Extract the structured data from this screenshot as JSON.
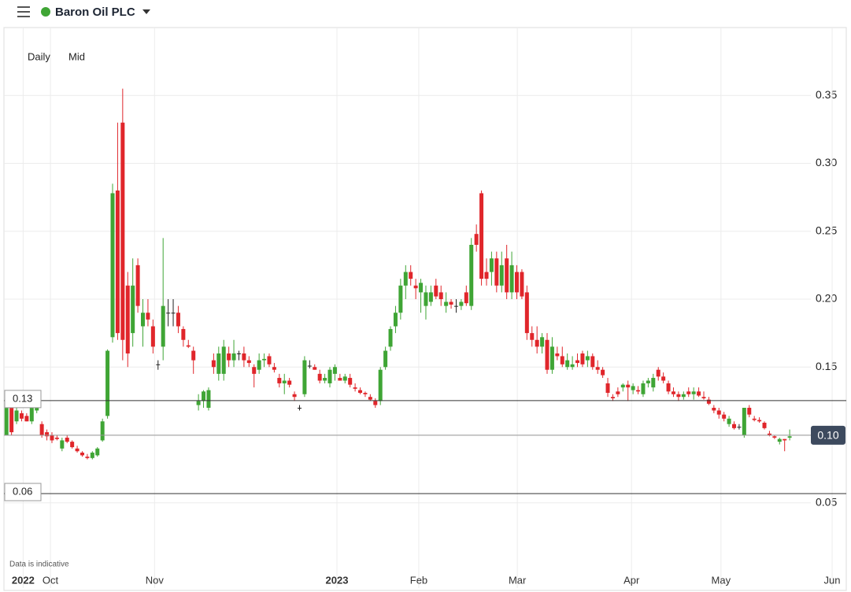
{
  "header": {
    "title": "Baron Oil PLC"
  },
  "controls": {
    "interval": "Daily",
    "price": "Mid"
  },
  "chart_data": {
    "type": "candlestick",
    "open": [
      0.1,
      0.12,
      0.11,
      0.116,
      0.114,
      0.11,
      0.118,
      0.108,
      0.102,
      0.1,
      0.098,
      0.09,
      0.098,
      0.095,
      0.09,
      0.087,
      0.084,
      0.083,
      0.085,
      0.096,
      0.114,
      0.172,
      0.28,
      0.33,
      0.21,
      0.175,
      0.225,
      0.18,
      0.19,
      0.18,
      0.152,
      0.165,
      0.19,
      0.19,
      0.19,
      0.178,
      0.166,
      0.162,
      0.122,
      0.125,
      0.12,
      0.155,
      0.145,
      0.145,
      0.16,
      0.155,
      0.16,
      0.16,
      0.155,
      0.15,
      0.148,
      0.155,
      0.158,
      0.15,
      0.142,
      0.138,
      0.14,
      0.13,
      0.12,
      0.13,
      0.151,
      0.15,
      0.145,
      0.14,
      0.138,
      0.145,
      0.142,
      0.14,
      0.142,
      0.135,
      0.133,
      0.131,
      0.128,
      0.125,
      0.125,
      0.15,
      0.165,
      0.18,
      0.19,
      0.21,
      0.22,
      0.21,
      0.205,
      0.195,
      0.198,
      0.21,
      0.205,
      0.195,
      0.198,
      0.195,
      0.195,
      0.205,
      0.195,
      0.248,
      0.278,
      0.22,
      0.22,
      0.23,
      0.21,
      0.23,
      0.205,
      0.22,
      0.22,
      0.205,
      0.175,
      0.17,
      0.165,
      0.17,
      0.148,
      0.16,
      0.158,
      0.15,
      0.15,
      0.155,
      0.16,
      0.155,
      0.158,
      0.15,
      0.148,
      0.138,
      0.128,
      0.132,
      0.135,
      0.137,
      0.133,
      0.133,
      0.13,
      0.138,
      0.135,
      0.148,
      0.143,
      0.138,
      0.132,
      0.13,
      0.128,
      0.132,
      0.13,
      0.132,
      0.128,
      0.126,
      0.12,
      0.118,
      0.115,
      0.108,
      0.108,
      0.106,
      0.1,
      0.12,
      0.112,
      0.111,
      0.109,
      0.101,
      0.099,
      0.095,
      0.097,
      0.098
    ],
    "high": [
      0.12,
      0.12,
      0.122,
      0.118,
      0.116,
      0.122,
      0.126,
      0.11,
      0.104,
      0.102,
      0.1,
      0.098,
      0.1,
      0.096,
      0.092,
      0.088,
      0.086,
      0.088,
      0.091,
      0.112,
      0.163,
      0.285,
      0.33,
      0.355,
      0.22,
      0.23,
      0.23,
      0.2,
      0.2,
      0.185,
      0.155,
      0.245,
      0.2,
      0.2,
      0.195,
      0.18,
      0.17,
      0.165,
      0.13,
      0.133,
      0.135,
      0.16,
      0.165,
      0.17,
      0.165,
      0.17,
      0.162,
      0.165,
      0.158,
      0.152,
      0.16,
      0.16,
      0.16,
      0.153,
      0.145,
      0.145,
      0.142,
      0.132,
      0.122,
      0.158,
      0.155,
      0.152,
      0.148,
      0.145,
      0.15,
      0.152,
      0.145,
      0.145,
      0.145,
      0.138,
      0.135,
      0.132,
      0.13,
      0.127,
      0.15,
      0.165,
      0.18,
      0.195,
      0.215,
      0.225,
      0.225,
      0.215,
      0.215,
      0.21,
      0.21,
      0.215,
      0.21,
      0.205,
      0.2,
      0.2,
      0.2,
      0.21,
      0.245,
      0.255,
      0.28,
      0.23,
      0.235,
      0.235,
      0.235,
      0.24,
      0.235,
      0.225,
      0.222,
      0.21,
      0.18,
      0.18,
      0.175,
      0.175,
      0.172,
      0.165,
      0.165,
      0.16,
      0.158,
      0.16,
      0.162,
      0.162,
      0.16,
      0.155,
      0.15,
      0.142,
      0.13,
      0.135,
      0.138,
      0.14,
      0.138,
      0.136,
      0.14,
      0.142,
      0.145,
      0.15,
      0.146,
      0.14,
      0.135,
      0.132,
      0.132,
      0.135,
      0.135,
      0.135,
      0.132,
      0.128,
      0.122,
      0.12,
      0.117,
      0.114,
      0.11,
      0.108,
      0.12,
      0.122,
      0.114,
      0.113,
      0.11,
      0.103,
      0.1,
      0.098,
      0.097,
      0.104
    ],
    "low": [
      0.1,
      0.1,
      0.108,
      0.11,
      0.11,
      0.108,
      0.116,
      0.098,
      0.096,
      0.094,
      0.096,
      0.088,
      0.094,
      0.09,
      0.087,
      0.084,
      0.082,
      0.082,
      0.084,
      0.095,
      0.112,
      0.168,
      0.17,
      0.155,
      0.15,
      0.165,
      0.19,
      0.165,
      0.18,
      0.16,
      0.148,
      0.155,
      0.18,
      0.18,
      0.175,
      0.165,
      0.164,
      0.145,
      0.118,
      0.12,
      0.118,
      0.145,
      0.14,
      0.14,
      0.15,
      0.15,
      0.155,
      0.15,
      0.15,
      0.135,
      0.145,
      0.15,
      0.15,
      0.146,
      0.135,
      0.13,
      0.135,
      0.125,
      0.118,
      0.128,
      0.149,
      0.148,
      0.138,
      0.138,
      0.135,
      0.14,
      0.14,
      0.138,
      0.135,
      0.132,
      0.13,
      0.128,
      0.125,
      0.12,
      0.122,
      0.148,
      0.162,
      0.175,
      0.185,
      0.2,
      0.21,
      0.2,
      0.19,
      0.185,
      0.195,
      0.2,
      0.195,
      0.19,
      0.193,
      0.19,
      0.192,
      0.195,
      0.192,
      0.235,
      0.21,
      0.21,
      0.21,
      0.205,
      0.205,
      0.2,
      0.2,
      0.2,
      0.2,
      0.17,
      0.165,
      0.16,
      0.16,
      0.145,
      0.145,
      0.155,
      0.15,
      0.148,
      0.148,
      0.15,
      0.15,
      0.15,
      0.148,
      0.145,
      0.142,
      0.128,
      0.125,
      0.128,
      0.132,
      0.125,
      0.13,
      0.13,
      0.128,
      0.135,
      0.132,
      0.14,
      0.138,
      0.13,
      0.128,
      0.125,
      0.126,
      0.128,
      0.126,
      0.128,
      0.126,
      0.122,
      0.116,
      0.112,
      0.11,
      0.106,
      0.104,
      0.104,
      0.098,
      0.113,
      0.11,
      0.109,
      0.104,
      0.099,
      0.097,
      0.093,
      0.088,
      0.096
    ],
    "close": [
      0.12,
      0.102,
      0.118,
      0.112,
      0.11,
      0.12,
      0.124,
      0.1,
      0.099,
      0.096,
      0.097,
      0.096,
      0.095,
      0.091,
      0.088,
      0.085,
      0.083,
      0.087,
      0.09,
      0.11,
      0.162,
      0.278,
      0.175,
      0.17,
      0.16,
      0.21,
      0.195,
      0.19,
      0.185,
      0.165,
      0.152,
      0.195,
      0.19,
      0.19,
      0.18,
      0.17,
      0.165,
      0.155,
      0.125,
      0.132,
      0.133,
      0.15,
      0.16,
      0.165,
      0.155,
      0.16,
      0.16,
      0.155,
      0.153,
      0.145,
      0.155,
      0.156,
      0.152,
      0.148,
      0.138,
      0.14,
      0.137,
      0.128,
      0.12,
      0.155,
      0.151,
      0.148,
      0.14,
      0.142,
      0.148,
      0.15,
      0.14,
      0.143,
      0.137,
      0.134,
      0.131,
      0.13,
      0.126,
      0.122,
      0.148,
      0.162,
      0.178,
      0.19,
      0.21,
      0.22,
      0.215,
      0.208,
      0.212,
      0.205,
      0.205,
      0.202,
      0.2,
      0.198,
      0.196,
      0.195,
      0.198,
      0.197,
      0.24,
      0.24,
      0.215,
      0.215,
      0.23,
      0.21,
      0.225,
      0.205,
      0.225,
      0.205,
      0.202,
      0.175,
      0.17,
      0.165,
      0.172,
      0.148,
      0.165,
      0.158,
      0.152,
      0.155,
      0.152,
      0.153,
      0.152,
      0.158,
      0.15,
      0.148,
      0.144,
      0.131,
      0.127,
      0.13,
      0.137,
      0.135,
      0.136,
      0.132,
      0.138,
      0.14,
      0.142,
      0.143,
      0.14,
      0.132,
      0.13,
      0.128,
      0.13,
      0.13,
      0.132,
      0.129,
      0.127,
      0.123,
      0.118,
      0.115,
      0.112,
      0.112,
      0.105,
      0.106,
      0.12,
      0.115,
      0.111,
      0.11,
      0.105,
      0.1,
      0.098,
      0.097,
      0.096,
      0.099
    ],
    "up_color": "#3fa535",
    "down_color": "#e0262b",
    "flat_color": "#222222",
    "ylim": [
      0,
      0.4
    ],
    "yticks": [
      0.05,
      {
        "value": 0.1,
        "label": "0.10"
      },
      0.15,
      {
        "value": 0.2,
        "label": "0.20"
      },
      0.25,
      {
        "value": 0.3,
        "label": "0.30"
      },
      0.35
    ],
    "xlim": [
      -0.5,
      166.2
    ],
    "xticks": [
      {
        "value": 3.3,
        "label": "2022"
      },
      {
        "value": 8.7,
        "label": "Oct"
      },
      {
        "value": 29.3,
        "label": "Nov"
      },
      {
        "value": 65.4,
        "label": "2023"
      },
      {
        "value": 81.6,
        "label": "Feb"
      },
      {
        "value": 101.1,
        "label": "Mar"
      },
      {
        "value": 123.7,
        "label": "Apr"
      },
      {
        "value": 141.4,
        "label": "May"
      },
      {
        "value": 163.4,
        "label": "Jun"
      }
    ],
    "grid": true,
    "annotations": [
      {
        "value": 0.1253,
        "label": "0.13",
        "label_side": "left"
      },
      {
        "value": 0.0568,
        "label": "0.06",
        "label_side": "left"
      },
      {
        "value": 0.0998,
        "label": "0.10",
        "label_side": "right"
      }
    ],
    "note": "Data is indicative"
  }
}
